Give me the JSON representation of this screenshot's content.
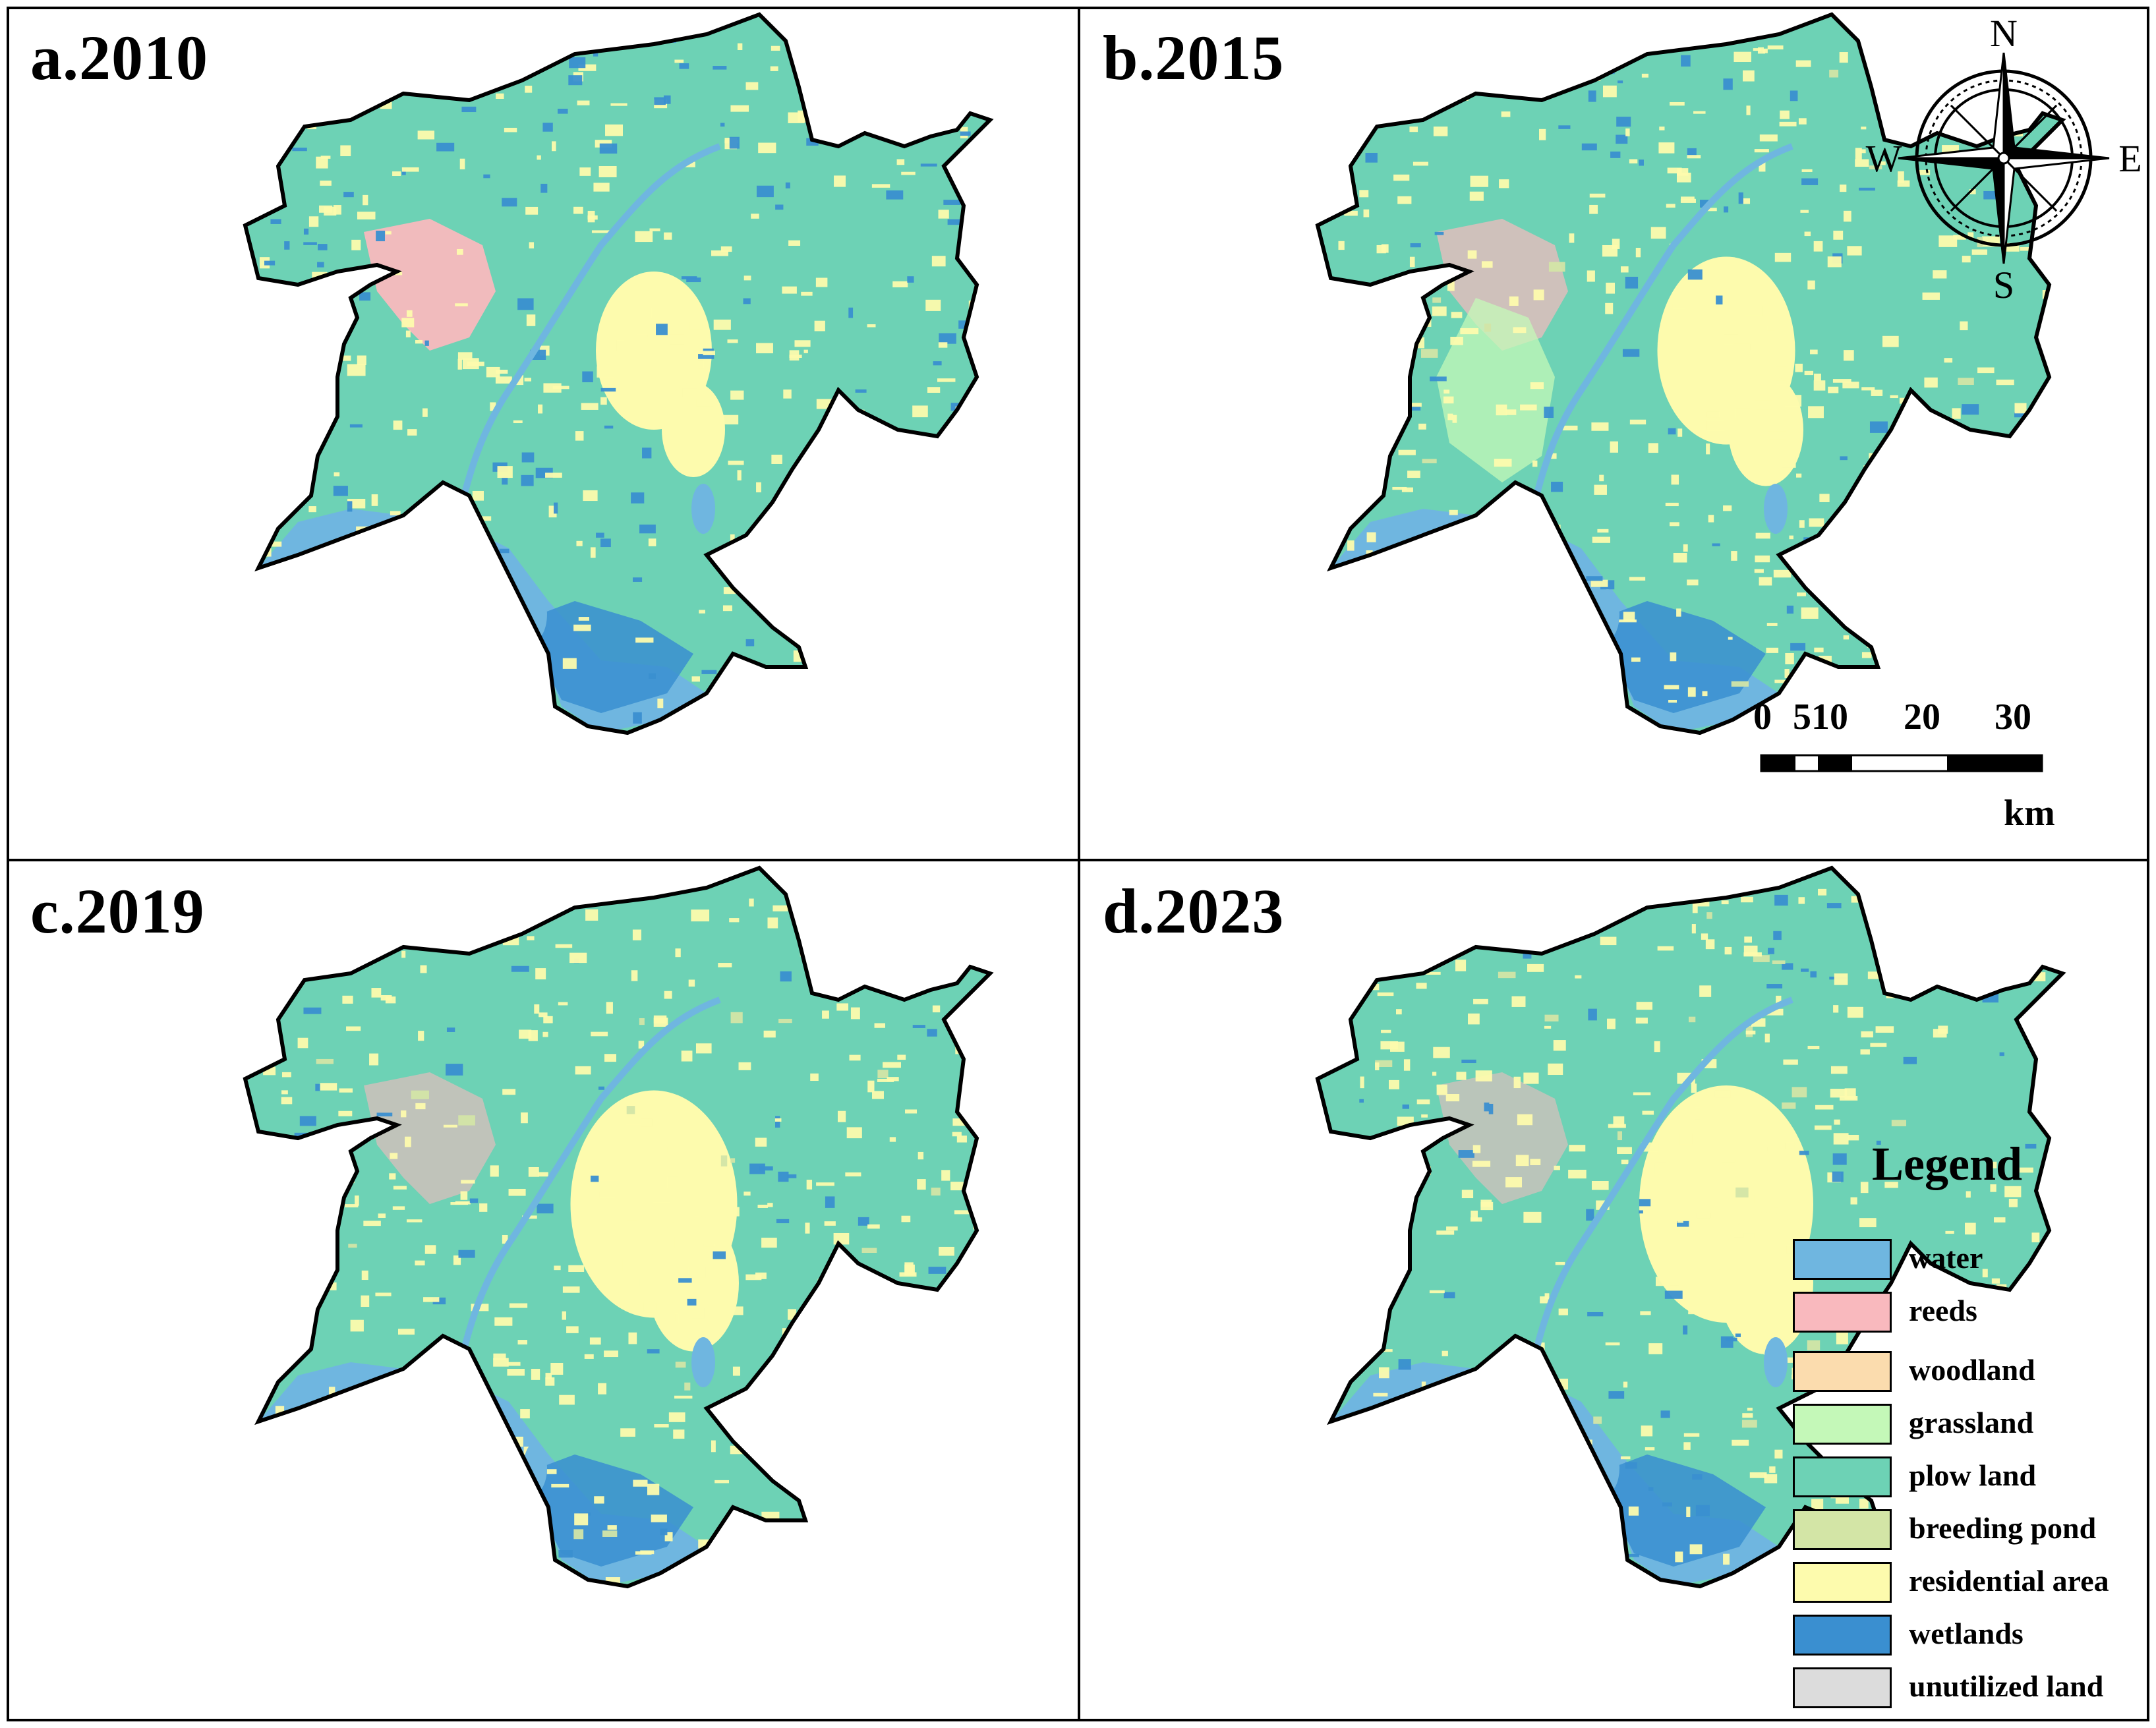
{
  "panels": [
    {
      "title": "a.2010"
    },
    {
      "title": "b.2015"
    },
    {
      "title": "c.2019"
    },
    {
      "title": "d.2023"
    }
  ],
  "compass": {
    "north": "N",
    "south": "S",
    "east": "E",
    "west": "W"
  },
  "scale": {
    "ticks": [
      "0",
      "5",
      "10",
      "20",
      "30"
    ],
    "unit": "km"
  },
  "legend": {
    "title": "Legend",
    "items": [
      {
        "label": "water",
        "color": "#6fb6e0"
      },
      {
        "label": "reeds",
        "color": "#f9b9be"
      },
      {
        "label": "woodland",
        "color": "#fbdcae"
      },
      {
        "label": "grassland",
        "color": "#c4f8b8"
      },
      {
        "label": "plow land",
        "color": "#6dd2b5"
      },
      {
        "label": "breeding pond",
        "color": "#d3e5a6"
      },
      {
        "label": "residential area",
        "color": "#fdfbad"
      },
      {
        "label": "wetlands",
        "color": "#3a8fd0"
      },
      {
        "label": "unutilized land",
        "color": "#dcdcdc"
      }
    ]
  }
}
